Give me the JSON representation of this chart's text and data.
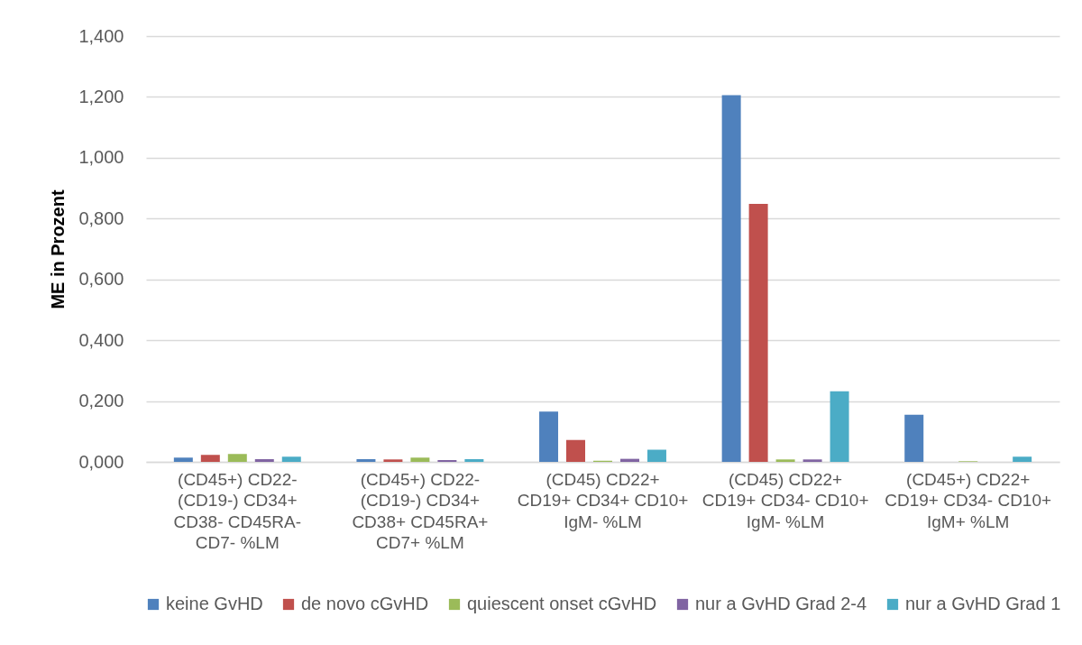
{
  "chart_data": {
    "type": "bar",
    "ylabel": "ME in Prozent",
    "categories": [
      "(CD45+) CD22- (CD19-) CD34+ CD38- CD45RA- CD7- %LM",
      "(CD45+) CD22- (CD19-) CD34+ CD38+ CD45RA+ CD7+  %LM",
      "(CD45) CD22+ CD19+ CD34+ CD10+ IgM-  %LM",
      "(CD45) CD22+ CD19+ CD34- CD10+ IgM-  %LM",
      "(CD45+) CD22+ CD19+ CD34- CD10+ IgM+  %LM"
    ],
    "series": [
      {
        "name": "keine GvHD",
        "color": "#4f81bd",
        "values": [
          0.014,
          0.009,
          0.165,
          1.206,
          0.155
        ]
      },
      {
        "name": "de novo cGvHD",
        "color": "#c0504d",
        "values": [
          0.023,
          0.008,
          0.072,
          0.848,
          0
        ]
      },
      {
        "name": "quiescent onset cGvHD",
        "color": "#9bbb59",
        "values": [
          0.026,
          0.014,
          0.004,
          0.008,
          0.002
        ]
      },
      {
        "name": "nur a GvHD Grad 2-4",
        "color": "#8064a2",
        "values": [
          0.009,
          0.006,
          0.01,
          0.008,
          0
        ]
      },
      {
        "name": "nur a GvHD Grad 1",
        "color": "#4bacc6",
        "values": [
          0.017,
          0.009,
          0.04,
          0.232,
          0.017
        ]
      }
    ],
    "ylim": [
      0,
      1.4
    ],
    "yticks": [
      {
        "value": 0,
        "label": "0,000"
      },
      {
        "value": 0.2,
        "label": "0,200"
      },
      {
        "value": 0.4,
        "label": "0,400"
      },
      {
        "value": 0.6,
        "label": "0,600"
      },
      {
        "value": 0.8,
        "label": "0,800"
      },
      {
        "value": 1.0,
        "label": "1,000"
      },
      {
        "value": 1.2,
        "label": "1,200"
      },
      {
        "value": 1.4,
        "label": "1,400"
      }
    ],
    "grid": "y",
    "legend": "bottom"
  }
}
